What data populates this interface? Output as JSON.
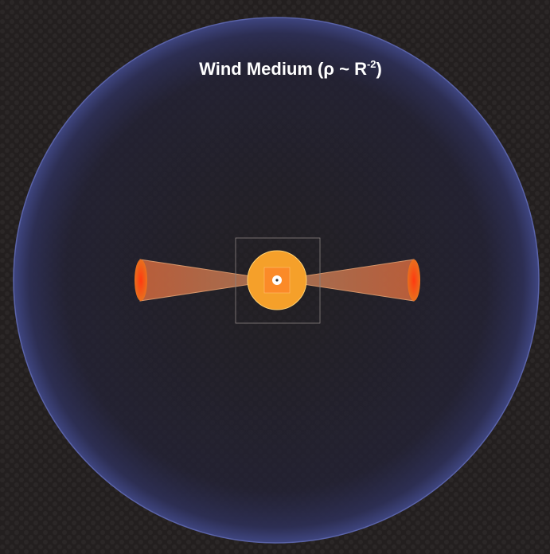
{
  "label": {
    "text": "Wind Medium (ρ ~ R",
    "superscript": "-2",
    "suffix": ")"
  }
}
